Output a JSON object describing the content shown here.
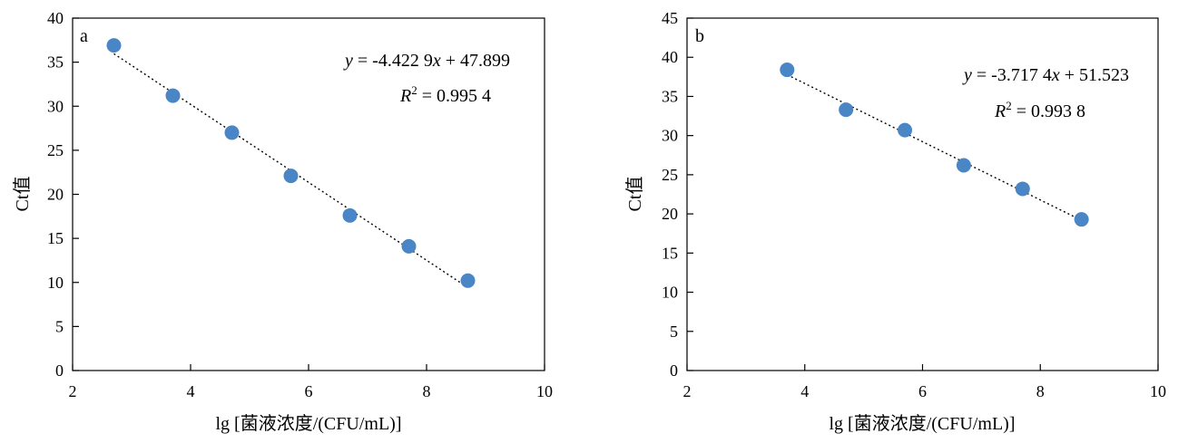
{
  "chart_data": [
    {
      "type": "scatter",
      "panel_label": "a",
      "xlabel": "lg [菌液浓度/(CFU/mL)]",
      "ylabel": "Ct值",
      "xlim": [
        2,
        10
      ],
      "ylim": [
        0,
        40
      ],
      "xticks": [
        "2",
        "4",
        "6",
        "8",
        "10"
      ],
      "yticks": [
        "0",
        "5",
        "10",
        "15",
        "20",
        "25",
        "30",
        "35",
        "40"
      ],
      "points": [
        {
          "x": 2.7,
          "y": 36.9
        },
        {
          "x": 3.7,
          "y": 31.2
        },
        {
          "x": 4.7,
          "y": 27.0
        },
        {
          "x": 5.7,
          "y": 22.1
        },
        {
          "x": 6.7,
          "y": 17.6
        },
        {
          "x": 7.7,
          "y": 14.1
        },
        {
          "x": 8.7,
          "y": 10.2
        }
      ],
      "trendline": {
        "slope": -4.4229,
        "intercept": 47.899
      },
      "equation": {
        "y": "y",
        "eq_mid": " = -4.422 9",
        "x": "x",
        "eq_tail": " + 47.899"
      },
      "r2": {
        "r": "R",
        "sup": "2",
        "value": " = 0.995 4"
      },
      "legend": "none",
      "grid": false,
      "marker_color": "#4a86c5"
    },
    {
      "type": "scatter",
      "panel_label": "b",
      "xlabel": "lg [菌液浓度/(CFU/mL)]",
      "ylabel": "Ct值",
      "xlim": [
        2,
        10
      ],
      "ylim": [
        0,
        45
      ],
      "xticks": [
        "2",
        "4",
        "6",
        "8",
        "10"
      ],
      "yticks": [
        "0",
        "5",
        "10",
        "15",
        "20",
        "25",
        "30",
        "35",
        "40",
        "45"
      ],
      "points": [
        {
          "x": 3.7,
          "y": 38.4
        },
        {
          "x": 4.7,
          "y": 33.3
        },
        {
          "x": 5.7,
          "y": 30.7
        },
        {
          "x": 6.7,
          "y": 26.2
        },
        {
          "x": 7.7,
          "y": 23.2
        },
        {
          "x": 8.7,
          "y": 19.3
        }
      ],
      "trendline": {
        "slope": -3.7174,
        "intercept": 51.523
      },
      "equation": {
        "y": "y",
        "eq_mid": " = -3.717 4",
        "x": "x",
        "eq_tail": " + 51.523"
      },
      "r2": {
        "r": "R",
        "sup": "2",
        "value": " = 0.993 8"
      },
      "legend": "none",
      "grid": false,
      "marker_color": "#4a86c5"
    }
  ]
}
